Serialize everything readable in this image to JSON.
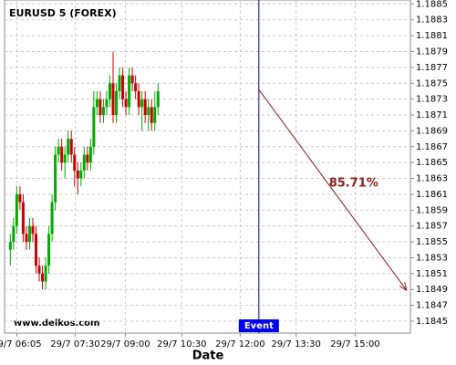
{
  "chart_data": {
    "type": "candlestick",
    "title": "EURUSD 5 (FOREX)",
    "x_label": "Date",
    "watermark": "www.delkos.com",
    "up_color": "#00aa00",
    "down_color": "#cc0000",
    "x": [
      355,
      360,
      365,
      370,
      375,
      380,
      385,
      390,
      395,
      400,
      405,
      410,
      415,
      420,
      425,
      430,
      435,
      440,
      445,
      450,
      455,
      460,
      465,
      470,
      475,
      480,
      485,
      490,
      495,
      500,
      505,
      510,
      515,
      520,
      525,
      530,
      535,
      540,
      545,
      550,
      555,
      560,
      565,
      570,
      575,
      580,
      585
    ],
    "open": [
      1.1854,
      1.1855,
      1.1857,
      1.1861,
      1.186,
      1.1856,
      1.1855,
      1.1857,
      1.1856,
      1.1852,
      1.1851,
      1.185,
      1.1852,
      1.1856,
      1.186,
      1.1866,
      1.1867,
      1.1865,
      1.1866,
      1.1868,
      1.1866,
      1.1864,
      1.1863,
      1.1864,
      1.1866,
      1.1865,
      1.1867,
      1.1872,
      1.1873,
      1.1871,
      1.1872,
      1.1873,
      1.1875,
      1.1871,
      1.1874,
      1.1876,
      1.1873,
      1.1872,
      1.1876,
      1.1875,
      1.1874,
      1.1872,
      1.1873,
      1.1871,
      1.1872,
      1.187,
      1.1872
    ],
    "close": [
      1.1855,
      1.1857,
      1.1861,
      1.186,
      1.1856,
      1.1855,
      1.1857,
      1.1856,
      1.1852,
      1.1851,
      1.185,
      1.1852,
      1.1856,
      1.186,
      1.1866,
      1.1867,
      1.1865,
      1.1866,
      1.1868,
      1.1866,
      1.1864,
      1.1863,
      1.1864,
      1.1866,
      1.1865,
      1.1867,
      1.1872,
      1.1873,
      1.1871,
      1.1872,
      1.1873,
      1.1875,
      1.1871,
      1.1874,
      1.1876,
      1.1873,
      1.1872,
      1.1876,
      1.1875,
      1.1874,
      1.1872,
      1.1873,
      1.1871,
      1.1872,
      1.187,
      1.1872,
      1.1874
    ],
    "high": [
      1.1856,
      1.1858,
      1.1862,
      1.1862,
      1.1861,
      1.1857,
      1.1858,
      1.1858,
      1.1857,
      1.1853,
      1.1852,
      1.1853,
      1.1857,
      1.1861,
      1.1867,
      1.1868,
      1.1868,
      1.1867,
      1.1869,
      1.1869,
      1.1867,
      1.1865,
      1.1865,
      1.1867,
      1.1867,
      1.1868,
      1.1874,
      1.1874,
      1.1874,
      1.1873,
      1.1874,
      1.1876,
      1.1879,
      1.1875,
      1.1877,
      1.1877,
      1.1874,
      1.1877,
      1.1877,
      1.1876,
      1.1875,
      1.1874,
      1.1874,
      1.1873,
      1.1873,
      1.1874,
      1.1875
    ],
    "low": [
      1.1852,
      1.1854,
      1.1856,
      1.1859,
      1.1855,
      1.1854,
      1.1854,
      1.1855,
      1.1851,
      1.185,
      1.1849,
      1.1849,
      1.1851,
      1.1855,
      1.1859,
      1.1865,
      1.1864,
      1.1863,
      1.1865,
      1.1865,
      1.1862,
      1.1861,
      1.1862,
      1.1863,
      1.1864,
      1.1864,
      1.1866,
      1.1871,
      1.187,
      1.187,
      1.1871,
      1.1872,
      1.187,
      1.187,
      1.1873,
      1.1872,
      1.1871,
      1.1871,
      1.1874,
      1.1873,
      1.1871,
      1.1869,
      1.187,
      1.1869,
      1.1869,
      1.1869,
      1.1871
    ],
    "xlim": [
      346,
      978
    ],
    "ylim": [
      1.18435,
      1.18855
    ],
    "xticks": [
      {
        "value": 365,
        "label": "29/7 06:05"
      },
      {
        "value": 456,
        "label": "29/7 07:30"
      },
      {
        "value": 534,
        "label": "29/7 09:00"
      },
      {
        "value": 622,
        "label": "29/7 10:30"
      },
      {
        "value": 713,
        "label": "29/7 12:00"
      },
      {
        "value": 800,
        "label": "29/7 13:30"
      },
      {
        "value": 892,
        "label": "29/7 15:00"
      }
    ],
    "yticks": [
      1.1845,
      1.1847,
      1.1849,
      1.1851,
      1.1853,
      1.1855,
      1.1857,
      1.1859,
      1.1861,
      1.1863,
      1.1865,
      1.1867,
      1.1869,
      1.1871,
      1.1873,
      1.1875,
      1.1877,
      1.1879,
      1.1881,
      1.1883,
      1.1885
    ],
    "grid": true,
    "event": {
      "x": 742,
      "label": "Event"
    },
    "projection": {
      "x": [
        742,
        972
      ],
      "y": [
        1.18742,
        1.18489
      ],
      "label": "85.71%",
      "color": "#8b1a1a"
    }
  }
}
